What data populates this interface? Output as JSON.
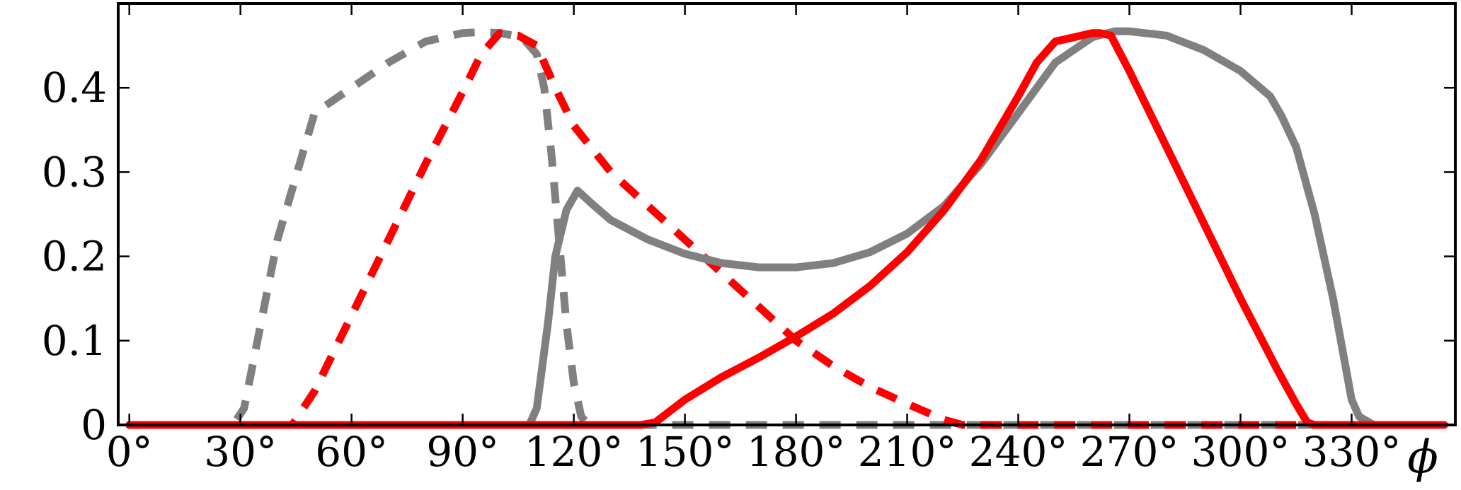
{
  "chart_data": {
    "type": "line",
    "title": "",
    "xlabel": "ϕ",
    "ylabel": "",
    "xlim": [
      -3,
      358
    ],
    "ylim": [
      0,
      0.5
    ],
    "grid": false,
    "legend": "none",
    "x_ticks": [
      {
        "value": 0,
        "label": "0°"
      },
      {
        "value": 30,
        "label": "30°"
      },
      {
        "value": 60,
        "label": "60°"
      },
      {
        "value": 90,
        "label": "90°"
      },
      {
        "value": 120,
        "label": "120°"
      },
      {
        "value": 150,
        "label": "150°"
      },
      {
        "value": 180,
        "label": "180°"
      },
      {
        "value": 210,
        "label": "210°"
      },
      {
        "value": 240,
        "label": "240°"
      },
      {
        "value": 270,
        "label": "270°"
      },
      {
        "value": 300,
        "label": "300°"
      },
      {
        "value": 330,
        "label": "330°"
      }
    ],
    "x_minor_ticks": [
      0,
      30,
      60,
      90,
      120,
      150,
      180,
      210,
      240,
      270,
      300,
      330
    ],
    "y_ticks": [
      {
        "value": 0,
        "label": "0"
      },
      {
        "value": 0.1,
        "label": "0.1"
      },
      {
        "value": 0.2,
        "label": "0.2"
      },
      {
        "value": 0.3,
        "label": "0.3"
      },
      {
        "value": 0.4,
        "label": "0.4"
      }
    ],
    "series": [
      {
        "color": "#808080",
        "dash": "dashed",
        "x": [
          0,
          28,
          31,
          40,
          50,
          60,
          70,
          80,
          90,
          95,
          100,
          106,
          110,
          112,
          114,
          116,
          118,
          120,
          122,
          124,
          130,
          150,
          200,
          250,
          300,
          340,
          355
        ],
        "y": [
          0,
          0,
          0.02,
          0.22,
          0.37,
          0.4,
          0.43,
          0.455,
          0.465,
          0.466,
          0.465,
          0.46,
          0.44,
          0.4,
          0.32,
          0.22,
          0.12,
          0.05,
          0.01,
          0,
          0,
          0,
          0,
          0,
          0,
          0,
          0
        ]
      },
      {
        "color": "#ff0000",
        "dash": "dashed",
        "x": [
          0,
          44,
          50,
          60,
          70,
          80,
          90,
          95,
          100,
          105,
          110,
          115,
          120,
          130,
          140,
          150,
          160,
          170,
          180,
          190,
          200,
          210,
          220,
          225,
          240,
          270,
          300,
          340,
          355
        ],
        "y": [
          0,
          0,
          0.04,
          0.13,
          0.22,
          0.31,
          0.395,
          0.44,
          0.465,
          0.462,
          0.45,
          0.4,
          0.355,
          0.3,
          0.26,
          0.22,
          0.18,
          0.14,
          0.1,
          0.07,
          0.045,
          0.025,
          0.006,
          0,
          0,
          0,
          0,
          0,
          0
        ]
      },
      {
        "color": "#808080",
        "dash": "solid",
        "x": [
          0,
          108,
          110,
          113,
          115,
          118,
          121,
          125,
          130,
          140,
          150,
          160,
          170,
          180,
          190,
          200,
          210,
          220,
          230,
          240,
          250,
          260,
          266,
          270,
          280,
          290,
          300,
          308,
          311,
          315,
          320,
          325,
          330,
          332,
          336,
          355
        ],
        "y": [
          0,
          0,
          0.02,
          0.12,
          0.2,
          0.255,
          0.278,
          0.262,
          0.243,
          0.22,
          0.203,
          0.192,
          0.187,
          0.187,
          0.192,
          0.205,
          0.227,
          0.26,
          0.31,
          0.37,
          0.43,
          0.46,
          0.467,
          0.467,
          0.462,
          0.445,
          0.42,
          0.39,
          0.367,
          0.33,
          0.25,
          0.15,
          0.03,
          0.01,
          0,
          0
        ]
      },
      {
        "color": "#ff0000",
        "dash": "solid",
        "x": [
          0,
          138,
          142,
          150,
          160,
          170,
          180,
          190,
          200,
          210,
          220,
          230,
          240,
          245,
          250,
          255,
          260,
          262,
          265,
          270,
          280,
          290,
          300,
          310,
          315,
          318,
          320,
          355
        ],
        "y": [
          0,
          0,
          0.003,
          0.03,
          0.057,
          0.08,
          0.105,
          0.132,
          0.165,
          0.205,
          0.255,
          0.315,
          0.39,
          0.43,
          0.455,
          0.46,
          0.465,
          0.465,
          0.462,
          0.42,
          0.33,
          0.24,
          0.15,
          0.065,
          0.025,
          0.003,
          0,
          0
        ]
      }
    ]
  }
}
